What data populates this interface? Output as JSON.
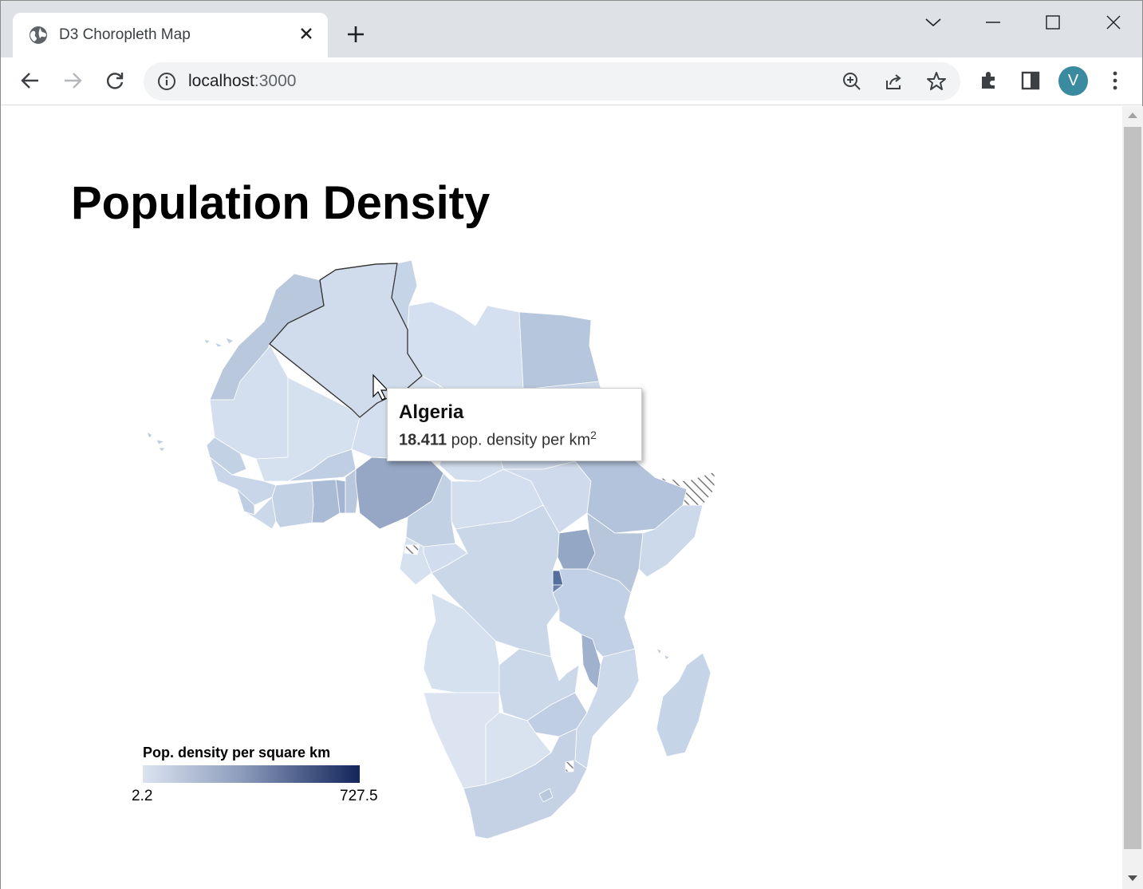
{
  "browser": {
    "tab_title": "D3 Choropleth Map",
    "url_host": "localhost",
    "url_port": ":3000",
    "profile_initial": "V",
    "profile_color": "#3a8aa0"
  },
  "page": {
    "title": "Population Density"
  },
  "tooltip": {
    "country": "Algeria",
    "value": "18.411",
    "unit_text": " pop. density per km",
    "unit_sup": "2"
  },
  "legend": {
    "title": "Pop. density per square km",
    "min": "2.2",
    "max": "727.5",
    "color_low": "#dbe3ef",
    "color_high": "#13255a"
  },
  "map": {
    "no_data_pattern": "hatched-gray",
    "highlighted_country": "Algeria"
  }
}
